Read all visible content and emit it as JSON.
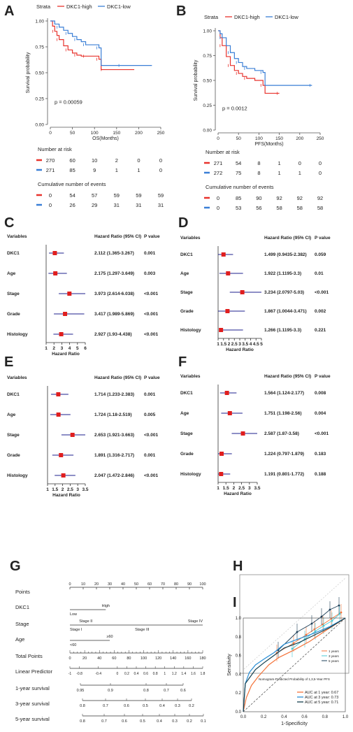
{
  "colors": {
    "high": "#e8332d",
    "low": "#3a7fd6",
    "forest_point": "#e01e1e",
    "forest_line": "#1c1f8c",
    "grid": "#cfcfcf"
  },
  "panel_letters": [
    "A",
    "B",
    "C",
    "D",
    "E",
    "F",
    "G",
    "H",
    "I"
  ],
  "km": [
    {
      "strata_label": "Strata",
      "legend": [
        "DKC1-high",
        "DKC1-low"
      ],
      "ylabel": "Survival probability",
      "xlabel": "OS(Months)",
      "pvalue": "p = 0.00059",
      "yticks": [
        "0.00",
        "0.25",
        "0.50",
        "0.75",
        "1.00"
      ],
      "xticks": [
        "0",
        "50",
        "100",
        "150",
        "200",
        "250"
      ],
      "risk_title": "Number at risk",
      "risk": [
        [
          "270",
          "60",
          "10",
          "2",
          "0",
          "0"
        ],
        [
          "271",
          "85",
          "9",
          "1",
          "1",
          "0"
        ]
      ],
      "events_title": "Cumulative number of events",
      "events": [
        [
          "0",
          "54",
          "57",
          "59",
          "59",
          "59"
        ],
        [
          "0",
          "26",
          "29",
          "31",
          "31",
          "31"
        ]
      ]
    },
    {
      "strata_label": "Strata",
      "legend": [
        "DKC1-high",
        "DKC1-low"
      ],
      "ylabel": "Survival probability",
      "xlabel": "PFS(Months)",
      "pvalue": "p = 0.0012",
      "yticks": [
        "0.00",
        "0.25",
        "0.50",
        "0.75",
        "1.00"
      ],
      "xticks": [
        "0",
        "50",
        "100",
        "150",
        "200",
        "250"
      ],
      "risk_title": "Number at risk",
      "risk": [
        [
          "271",
          "54",
          "8",
          "1",
          "0",
          "0"
        ],
        [
          "272",
          "75",
          "8",
          "1",
          "1",
          "0"
        ]
      ],
      "events_title": "Cumulative number of events",
      "events": [
        [
          "0",
          "85",
          "90",
          "92",
          "92",
          "92"
        ],
        [
          "0",
          "53",
          "56",
          "58",
          "58",
          "58"
        ]
      ]
    }
  ],
  "forest_headers": {
    "variables": "Variables",
    "hr": "Hazard Ratio (95% CI)",
    "p": "P value",
    "xlabel": "Hazard Ratio"
  },
  "forests": [
    {
      "xticks": [
        "1",
        "2",
        "3",
        "4",
        "5",
        "6"
      ],
      "rows": [
        {
          "label": "DKC1",
          "hr_text": "2.112 (1.365-3.267)",
          "p": "0.001"
        },
        {
          "label": "Age",
          "hr_text": "2.175 (1.297-3.649)",
          "p": "0.003"
        },
        {
          "label": "Stage",
          "hr_text": "3.973 (2.614-6.038)",
          "p": "<0.001"
        },
        {
          "label": "Grade",
          "hr_text": "3.417 (1.989-5.869)",
          "p": "<0.001"
        },
        {
          "label": "Histology",
          "hr_text": "2.927 (1.93-4.438)",
          "p": "<0.001"
        }
      ]
    },
    {
      "xticks": [
        "1",
        "1.5",
        "2",
        "2.5",
        "3",
        "3.5",
        "4",
        "4.5",
        "5"
      ],
      "rows": [
        {
          "label": "DKC1",
          "hr_text": "1.499 (0.9435-2.382)",
          "p": "0.059"
        },
        {
          "label": "Age",
          "hr_text": "1.922 (1.1195-3.3)",
          "p": "0.01"
        },
        {
          "label": "Stage",
          "hr_text": "3.234 (2.0797-5.03)",
          "p": "<0.001"
        },
        {
          "label": "Grade",
          "hr_text": "1.867 (1.0044-3.471)",
          "p": "0.002"
        },
        {
          "label": "Histology",
          "hr_text": "1.266 (1.1195-3.3)",
          "p": "0.221"
        }
      ]
    },
    {
      "xticks": [
        "1",
        "1.5",
        "2",
        "2.5",
        "3",
        "3.5"
      ],
      "rows": [
        {
          "label": "DKC1",
          "hr_text": "1.714 (1.233-2.383)",
          "p": "0.001"
        },
        {
          "label": "Age",
          "hr_text": "1.724 (1.18-2.519)",
          "p": "0.005"
        },
        {
          "label": "Stage",
          "hr_text": "2.653 (1.921-3.663)",
          "p": "<0.001"
        },
        {
          "label": "Grade",
          "hr_text": "1.891 (1.316-2.717)",
          "p": "0.001"
        },
        {
          "label": "Histology",
          "hr_text": "2.047 (1.472-2.846)",
          "p": "<0.001"
        }
      ]
    },
    {
      "xticks": [
        "1",
        "1.5",
        "2",
        "2.5",
        "3",
        "3.5"
      ],
      "rows": [
        {
          "label": "DKC1",
          "hr_text": "1.564 (1.124-2.177)",
          "p": "0.008"
        },
        {
          "label": "Age",
          "hr_text": "1.751 (1.198-2.56)",
          "p": "0.004"
        },
        {
          "label": "Stage",
          "hr_text": "2.587 (1.87-3.58)",
          "p": "<0.001"
        },
        {
          "label": "Grade",
          "hr_text": "1.224 (0.797-1.879)",
          "p": "0.183"
        },
        {
          "label": "Histology",
          "hr_text": "1.191 (0.801-1.772)",
          "p": "0.188"
        }
      ]
    }
  ],
  "nomogram": {
    "rows": [
      "Points",
      "DKC1",
      "Stage",
      "Age",
      "Total Points",
      "Linear Predictor",
      "1-year survival",
      "3-year survival",
      "5-year survival"
    ],
    "points_ticks": [
      "0",
      "10",
      "20",
      "30",
      "40",
      "50",
      "60",
      "70",
      "80",
      "90",
      "100"
    ],
    "dkc1": [
      "Low",
      "High"
    ],
    "stage": [
      "Stage II",
      "Stage I",
      "Stage III",
      "Stage IV"
    ],
    "age": [
      "≥60",
      "<60"
    ],
    "total_ticks": [
      "0",
      "20",
      "40",
      "60",
      "80",
      "100",
      "120",
      "140",
      "160",
      "180"
    ],
    "lp_ticks": [
      "-1",
      "-0.8",
      "-0.4",
      "0",
      "0.2",
      "0.4",
      "0.6",
      "0.8",
      "1",
      "1.2",
      "1.4",
      "1.6",
      "1.8"
    ],
    "surv1": [
      "0.95",
      "0.9",
      "0.8",
      "0.7",
      "0.6"
    ],
    "surv3": [
      "0.8",
      "0.7",
      "0.6",
      "0.5",
      "0.4",
      "0.3",
      "0.2"
    ],
    "surv5": [
      "0.8",
      "0.7",
      "0.6",
      "0.5",
      "0.4",
      "0.3",
      "0.2",
      "0.1"
    ]
  },
  "calibration": {
    "xlabel": "Nomogram-Predicted Probability of 1,3,5-Year PFS",
    "legend": [
      "1 years",
      "3 years",
      "5 years"
    ],
    "colors": [
      "#f4743b",
      "#49c9d6",
      "#1d3f58"
    ]
  },
  "roc": {
    "xlabel": "1-Specificity",
    "ylabel": "Sensitivity",
    "ticks": [
      "0.0",
      "0.2",
      "0.4",
      "0.6",
      "0.8",
      "1.0"
    ],
    "legend": [
      "AUC at 1 year: 0.67",
      "AUC at 3 year: 0.73",
      "AUC at 5 year: 0.71"
    ],
    "colors": [
      "#f4743b",
      "#2b8fd6",
      "#16404f"
    ]
  },
  "chart_data": [
    {
      "type": "line",
      "panel": "A",
      "xlabel": "OS(Months)",
      "ylabel": "Survival probability",
      "xlim": [
        0,
        250
      ],
      "ylim": [
        0,
        1
      ],
      "series": [
        {
          "name": "DKC1-high",
          "x": [
            0,
            5,
            10,
            15,
            20,
            30,
            40,
            50,
            60,
            70,
            80,
            100,
            110,
            115,
            120,
            190
          ],
          "y": [
            1,
            0.95,
            0.9,
            0.86,
            0.82,
            0.76,
            0.72,
            0.69,
            0.67,
            0.66,
            0.66,
            0.66,
            0.63,
            0.53,
            0.53,
            0.53
          ]
        },
        {
          "name": "DKC1-low",
          "x": [
            0,
            10,
            20,
            30,
            40,
            50,
            60,
            70,
            80,
            100,
            110,
            115,
            160,
            230
          ],
          "y": [
            1,
            0.97,
            0.94,
            0.91,
            0.88,
            0.85,
            0.82,
            0.8,
            0.77,
            0.77,
            0.74,
            0.57,
            0.57,
            0.57
          ]
        }
      ]
    },
    {
      "type": "line",
      "panel": "B",
      "xlabel": "PFS(Months)",
      "ylabel": "Survival probability",
      "xlim": [
        0,
        250
      ],
      "ylim": [
        0,
        1
      ],
      "series": [
        {
          "name": "DKC1-high",
          "x": [
            0,
            5,
            10,
            20,
            30,
            40,
            50,
            60,
            70,
            90,
            110,
            115,
            150
          ],
          "y": [
            1,
            0.93,
            0.85,
            0.74,
            0.65,
            0.6,
            0.57,
            0.54,
            0.52,
            0.5,
            0.45,
            0.37,
            0.37
          ]
        },
        {
          "name": "DKC1-low",
          "x": [
            0,
            5,
            10,
            20,
            30,
            40,
            50,
            60,
            70,
            90,
            110,
            115,
            230
          ],
          "y": [
            1,
            0.97,
            0.93,
            0.85,
            0.78,
            0.72,
            0.68,
            0.64,
            0.62,
            0.6,
            0.58,
            0.45,
            0.45
          ]
        }
      ]
    },
    {
      "type": "scatter",
      "panel": "C",
      "xlabel": "Hazard Ratio",
      "series": [
        {
          "categories": [
            "DKC1",
            "Age",
            "Stage",
            "Grade",
            "Histology"
          ],
          "hr": [
            2.112,
            2.175,
            3.973,
            3.417,
            2.927
          ],
          "lower": [
            1.365,
            1.297,
            2.614,
            1.989,
            1.93
          ],
          "upper": [
            3.267,
            3.649,
            6.038,
            5.869,
            4.438
          ]
        }
      ]
    },
    {
      "type": "scatter",
      "panel": "D",
      "xlabel": "Hazard Ratio",
      "series": [
        {
          "categories": [
            "DKC1",
            "Age",
            "Stage",
            "Grade",
            "Histology"
          ],
          "hr": [
            1.499,
            1.922,
            3.234,
            1.867,
            1.266
          ],
          "lower": [
            0.9435,
            1.1195,
            2.0797,
            1.0044,
            1.1195
          ],
          "upper": [
            2.382,
            3.3,
            5.03,
            3.471,
            3.3
          ]
        }
      ]
    },
    {
      "type": "scatter",
      "panel": "E",
      "xlabel": "Hazard Ratio",
      "series": [
        {
          "categories": [
            "DKC1",
            "Age",
            "Stage",
            "Grade",
            "Histology"
          ],
          "hr": [
            1.714,
            1.724,
            2.653,
            1.891,
            2.047
          ],
          "lower": [
            1.233,
            1.18,
            1.921,
            1.316,
            1.472
          ],
          "upper": [
            2.383,
            2.519,
            3.663,
            2.717,
            2.846
          ]
        }
      ]
    },
    {
      "type": "scatter",
      "panel": "F",
      "xlabel": "Hazard Ratio",
      "series": [
        {
          "categories": [
            "DKC1",
            "Age",
            "Stage",
            "Grade",
            "Histology"
          ],
          "hr": [
            1.564,
            1.751,
            2.587,
            1.224,
            1.191
          ],
          "lower": [
            1.124,
            1.198,
            1.87,
            0.797,
            0.801
          ],
          "upper": [
            2.177,
            2.56,
            3.58,
            1.879,
            1.772
          ]
        }
      ]
    },
    {
      "type": "line",
      "panel": "I",
      "xlabel": "1-Specificity",
      "ylabel": "Sensitivity",
      "xlim": [
        0,
        1
      ],
      "ylim": [
        0,
        1
      ],
      "series": [
        {
          "name": "AUC at 1 year: 0.67",
          "x": [
            0,
            0.03,
            0.08,
            0.15,
            0.25,
            0.35,
            0.5,
            0.65,
            0.8,
            1
          ],
          "y": [
            0,
            0.15,
            0.28,
            0.38,
            0.5,
            0.58,
            0.66,
            0.75,
            0.86,
            1
          ]
        },
        {
          "name": "AUC at 3 year: 0.73",
          "x": [
            0,
            0.02,
            0.06,
            0.12,
            0.2,
            0.3,
            0.4,
            0.55,
            0.7,
            0.85,
            1
          ],
          "y": [
            0,
            0.3,
            0.42,
            0.5,
            0.56,
            0.63,
            0.72,
            0.78,
            0.84,
            0.91,
            1
          ]
        },
        {
          "name": "AUC at 5 year: 0.71",
          "x": [
            0,
            0.02,
            0.06,
            0.12,
            0.2,
            0.3,
            0.4,
            0.55,
            0.7,
            0.85,
            1
          ],
          "y": [
            0,
            0.3,
            0.36,
            0.45,
            0.52,
            0.6,
            0.68,
            0.74,
            0.82,
            0.9,
            1
          ]
        }
      ]
    }
  ]
}
